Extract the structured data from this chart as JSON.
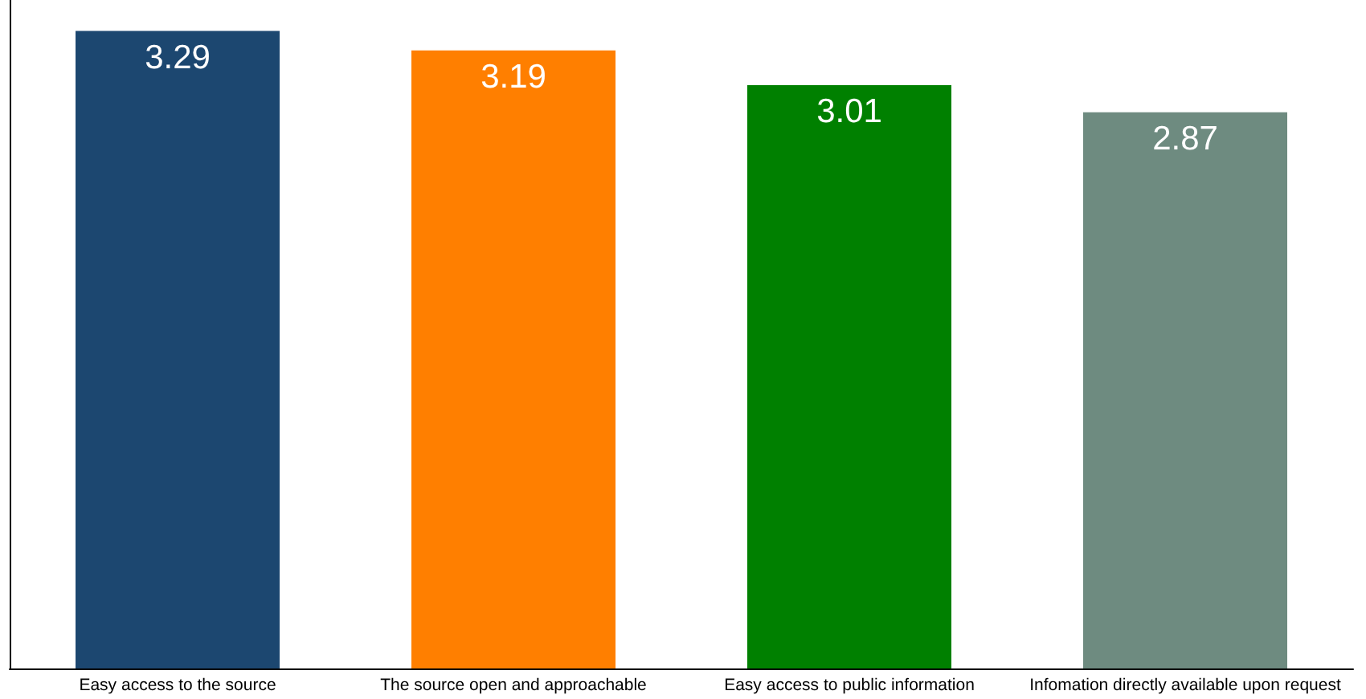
{
  "chart_data": {
    "type": "bar",
    "categories": [
      "Easy access to the source",
      "The source open and approachable",
      "Easy access to public information",
      "Infomation directly available upon request"
    ],
    "values": [
      3.29,
      3.19,
      3.01,
      2.87
    ],
    "colors": [
      "#1c4770",
      "#ff7f00",
      "#008000",
      "#6e8b80"
    ],
    "ylim": [
      0,
      3.45
    ],
    "tick_labels": "x",
    "data_labels": true
  }
}
